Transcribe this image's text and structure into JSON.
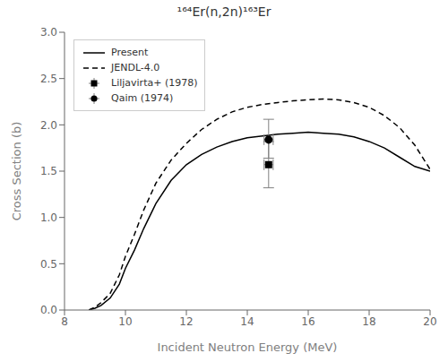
{
  "chart_data": {
    "type": "line",
    "title": "¹⁶⁴Er(n,2n)¹⁶³Er",
    "xlabel": "Incident Neutron Energy (MeV)",
    "ylabel": "Cross Section (b)",
    "xlim": [
      8,
      20
    ],
    "ylim": [
      0.0,
      3.0
    ],
    "xticks": [
      8,
      10,
      12,
      14,
      16,
      18,
      20
    ],
    "yticks": [
      {
        "value": 0.0,
        "label": "0.0"
      },
      0.5,
      {
        "value": 1.0,
        "label": "1.0"
      },
      1.5,
      {
        "value": 2.0,
        "label": "2.0"
      },
      2.5,
      {
        "value": 3.0,
        "label": "3.0"
      }
    ],
    "grid": false,
    "legend": "upper left",
    "x": [
      8.8,
      9.0,
      9.2,
      9.5,
      9.8,
      10.0,
      10.3,
      10.6,
      11.0,
      11.5,
      12.0,
      12.5,
      13.0,
      13.5,
      14.0,
      14.5,
      15.0,
      15.5,
      16.0,
      16.5,
      17.0,
      17.5,
      18.0,
      18.5,
      19.0,
      19.5,
      20.0
    ],
    "series": [
      {
        "name": "Present",
        "type": "line",
        "color": "black",
        "line_style": "solid",
        "values": [
          0.0,
          0.02,
          0.05,
          0.13,
          0.28,
          0.45,
          0.65,
          0.88,
          1.15,
          1.4,
          1.57,
          1.68,
          1.76,
          1.82,
          1.86,
          1.88,
          1.9,
          1.91,
          1.92,
          1.91,
          1.9,
          1.87,
          1.82,
          1.75,
          1.65,
          1.55,
          1.5
        ]
      },
      {
        "name": "JENDL-4.0",
        "type": "line",
        "color": "black",
        "line_style": "dashed",
        "values": [
          0.0,
          0.03,
          0.08,
          0.18,
          0.38,
          0.58,
          0.82,
          1.08,
          1.37,
          1.62,
          1.8,
          1.95,
          2.06,
          2.14,
          2.19,
          2.22,
          2.24,
          2.26,
          2.27,
          2.28,
          2.27,
          2.24,
          2.19,
          2.1,
          1.97,
          1.78,
          1.52
        ]
      },
      {
        "name": "Liljavirta+ (1978)",
        "type": "scatter",
        "color": "black",
        "marker": "square",
        "x": [
          14.7
        ],
        "values": [
          1.57
        ],
        "yerr_lo": [
          0.25
        ],
        "yerr_hi": [
          0.25
        ],
        "xerr": [
          0.15
        ]
      },
      {
        "name": "Qaim (1974)",
        "type": "scatter",
        "color": "black",
        "marker": "circle",
        "x": [
          14.7
        ],
        "values": [
          1.84
        ],
        "yerr_lo": [
          0.2
        ],
        "yerr_hi": [
          0.22
        ],
        "xerr": [
          0.15
        ]
      }
    ]
  }
}
